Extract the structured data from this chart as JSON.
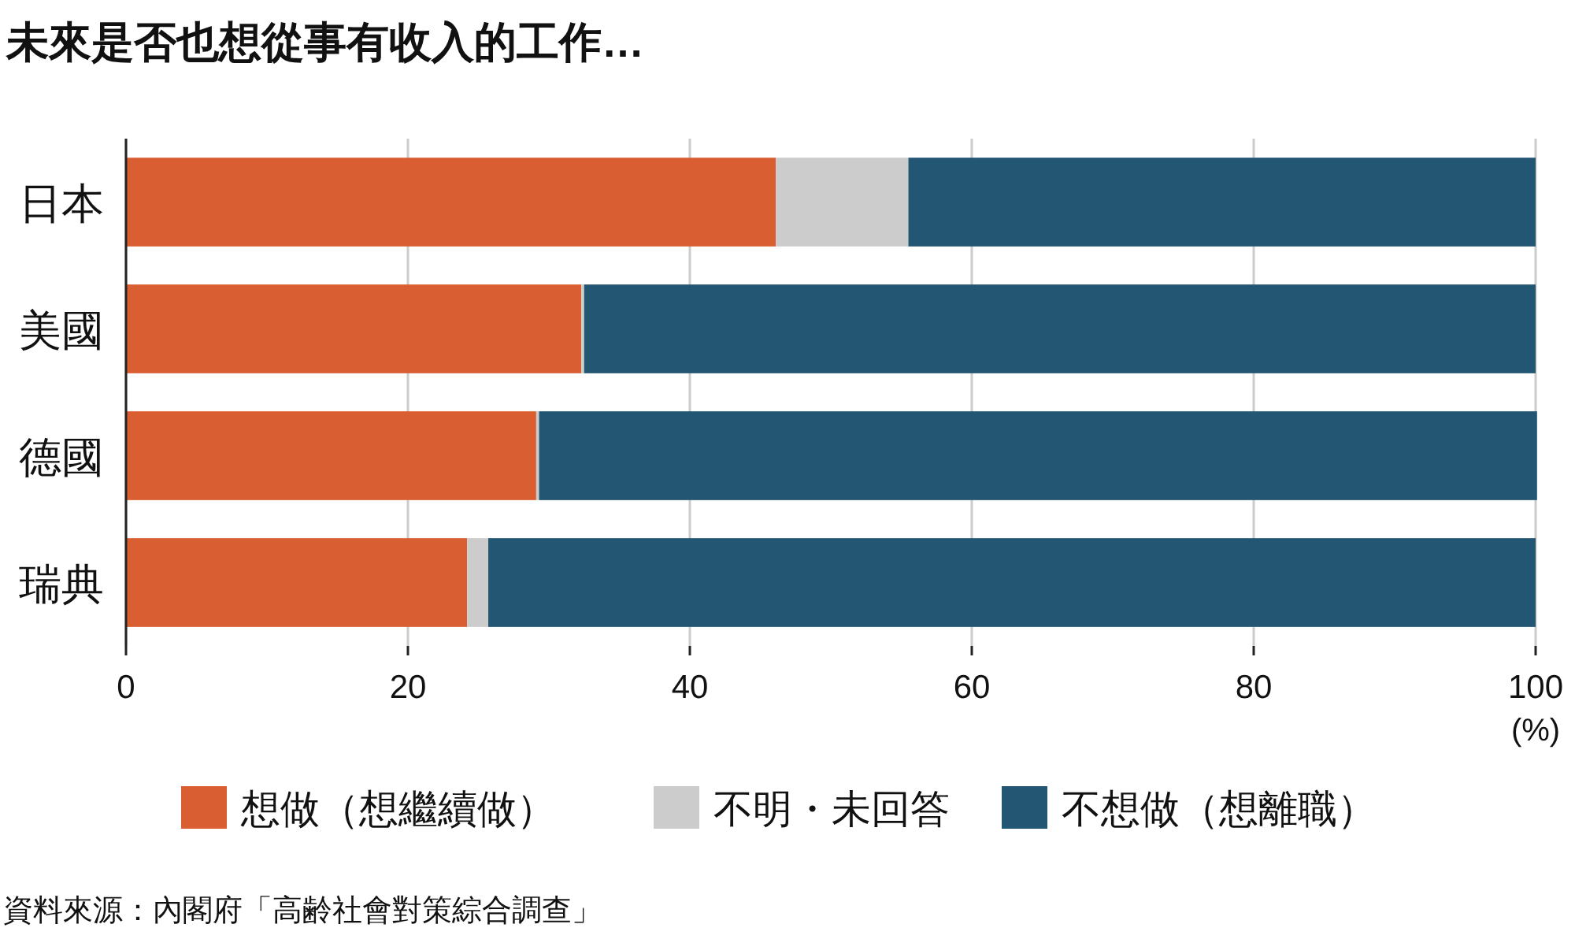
{
  "chart_data": {
    "type": "bar",
    "orientation": "horizontal",
    "stacked": true,
    "title": "未來是否也想從事有收入的工作…",
    "xlabel": "(%)",
    "categories": [
      "日本",
      "美國",
      "德國",
      "瑞典"
    ],
    "series": [
      {
        "name": "想做（想繼續做）",
        "color": "#d95f32",
        "values": [
          46.1,
          32.3,
          29.1,
          24.2
        ]
      },
      {
        "name": "不明・未回答",
        "color": "#cccccc",
        "values": [
          9.4,
          0.2,
          0.2,
          1.5
        ]
      },
      {
        "name": "不想做（想離職）",
        "color": "#235673",
        "values": [
          44.5,
          67.5,
          70.8,
          74.3
        ]
      }
    ],
    "xlim": [
      0,
      100
    ],
    "xticks": [
      0,
      20,
      40,
      60,
      80,
      100
    ],
    "grid": "x",
    "legend": "bottom",
    "annotations": [
      "資料來源：內閣府「高齢社會對策綜合調查」"
    ]
  }
}
